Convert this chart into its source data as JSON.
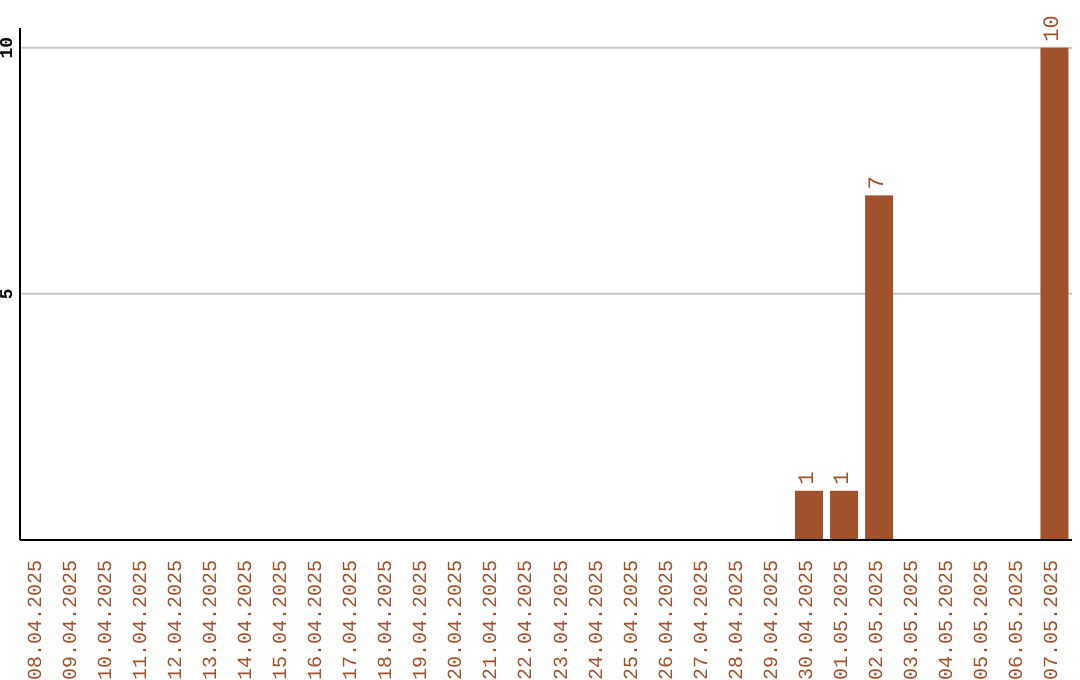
{
  "chart_data": {
    "type": "bar",
    "categories": [
      "08.04.2025",
      "09.04.2025",
      "10.04.2025",
      "11.04.2025",
      "12.04.2025",
      "13.04.2025",
      "14.04.2025",
      "15.04.2025",
      "16.04.2025",
      "17.04.2025",
      "18.04.2025",
      "19.04.2025",
      "20.04.2025",
      "21.04.2025",
      "22.04.2025",
      "23.04.2025",
      "24.04.2025",
      "25.04.2025",
      "26.04.2025",
      "27.04.2025",
      "28.04.2025",
      "29.04.2025",
      "30.04.2025",
      "01.05.2025",
      "02.05.2025",
      "03.05.2025",
      "04.05.2025",
      "05.05.2025",
      "06.05.2025",
      "07.05.2025"
    ],
    "values": [
      0,
      0,
      0,
      0,
      0,
      0,
      0,
      0,
      0,
      0,
      0,
      0,
      0,
      0,
      0,
      0,
      0,
      0,
      0,
      0,
      0,
      0,
      1,
      1,
      7,
      0,
      0,
      0,
      0,
      10
    ],
    "value_labels": [
      null,
      null,
      null,
      null,
      null,
      null,
      null,
      null,
      null,
      null,
      null,
      null,
      null,
      null,
      null,
      null,
      null,
      null,
      null,
      null,
      null,
      null,
      "1",
      "1",
      "7",
      null,
      null,
      null,
      null,
      "10"
    ],
    "color": "#a0522d",
    "ylim": [
      0,
      10.4
    ],
    "yticks": [
      5,
      10
    ],
    "grid": "y"
  }
}
